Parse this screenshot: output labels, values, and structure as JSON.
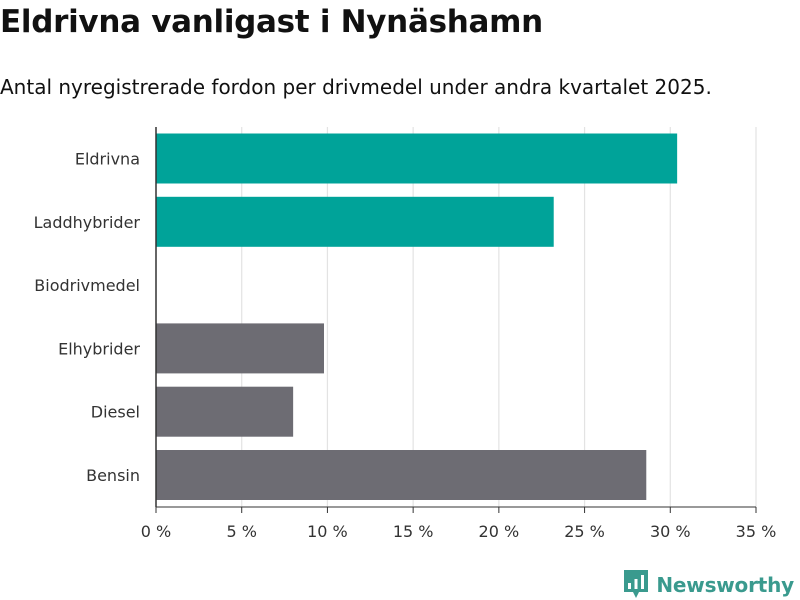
{
  "header": {
    "title": "Eldrivna vanligast i Nynäshamn",
    "subtitle": "Antal nyregistrerade fordon per drivmedel under andra kvartalet 2025."
  },
  "brand": {
    "name": "Newsworthy",
    "color": "#3a9a8e",
    "icon": "newsworthy-logo-icon"
  },
  "colors": {
    "highlight": "#00a399",
    "default": "#6d6c73",
    "grid": "#e3e3e3",
    "axis": "#333333"
  },
  "chart_data": {
    "type": "bar",
    "orientation": "horizontal",
    "title": "Eldrivna vanligast i Nynäshamn",
    "subtitle": "Antal nyregistrerade fordon per drivmedel under andra kvartalet 2025.",
    "categories": [
      "Eldrivna",
      "Laddhybrider",
      "Biodrivmedel",
      "Elhybrider",
      "Diesel",
      "Bensin"
    ],
    "values": [
      30.4,
      23.2,
      0,
      9.8,
      8.0,
      28.6
    ],
    "highlighted": [
      true,
      true,
      false,
      false,
      false,
      false
    ],
    "unit": "%",
    "xlim": [
      0,
      35
    ],
    "xticks": [
      0,
      5,
      10,
      15,
      20,
      25,
      30,
      35
    ],
    "xtick_labels": [
      "0 %",
      "5 %",
      "10 %",
      "15 %",
      "20 %",
      "25 %",
      "30 %",
      "35 %"
    ],
    "xlabel": "",
    "ylabel": "",
    "grid": true,
    "legend": "none"
  }
}
